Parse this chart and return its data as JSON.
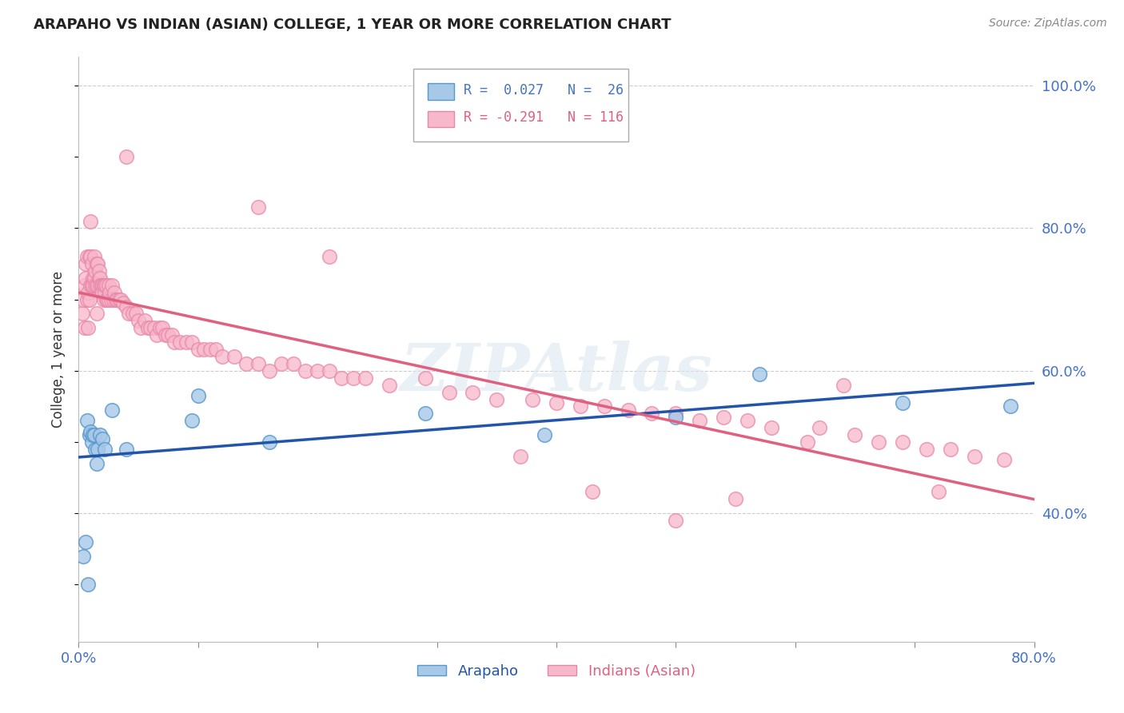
{
  "title": "ARAPAHO VS INDIAN (ASIAN) COLLEGE, 1 YEAR OR MORE CORRELATION CHART",
  "source": "Source: ZipAtlas.com",
  "ylabel": "College, 1 year or more",
  "xlim": [
    0.0,
    0.8
  ],
  "ylim": [
    0.22,
    1.04
  ],
  "xticks": [
    0.0,
    0.1,
    0.2,
    0.3,
    0.4,
    0.5,
    0.6,
    0.7,
    0.8
  ],
  "xticklabels": [
    "0.0%",
    "",
    "",
    "",
    "",
    "",
    "",
    "",
    "80.0%"
  ],
  "yticks_right": [
    0.4,
    0.6,
    0.8,
    1.0
  ],
  "ytick_labels_right": [
    "40.0%",
    "60.0%",
    "80.0%",
    "100.0%"
  ],
  "arapaho_color": "#a8c8e8",
  "arapaho_edge_color": "#5598cc",
  "arapaho_line_color": "#2255aa",
  "indian_color": "#f8b8cc",
  "indian_edge_color": "#e888a8",
  "indian_line_color": "#e06080",
  "watermark": "ZIPAtlas",
  "arapaho_x": [
    0.004,
    0.006,
    0.007,
    0.008,
    0.009,
    0.01,
    0.011,
    0.012,
    0.013,
    0.014,
    0.015,
    0.016,
    0.018,
    0.02,
    0.022,
    0.028,
    0.04,
    0.095,
    0.1,
    0.16,
    0.29,
    0.39,
    0.5,
    0.57,
    0.69,
    0.78
  ],
  "arapaho_y": [
    0.34,
    0.36,
    0.53,
    0.3,
    0.51,
    0.515,
    0.5,
    0.51,
    0.51,
    0.49,
    0.47,
    0.49,
    0.51,
    0.505,
    0.49,
    0.545,
    0.49,
    0.53,
    0.565,
    0.5,
    0.54,
    0.51,
    0.535,
    0.595,
    0.555,
    0.55
  ],
  "indian_x": [
    0.003,
    0.004,
    0.005,
    0.005,
    0.006,
    0.006,
    0.007,
    0.007,
    0.008,
    0.008,
    0.009,
    0.009,
    0.01,
    0.01,
    0.01,
    0.011,
    0.011,
    0.012,
    0.012,
    0.013,
    0.013,
    0.014,
    0.014,
    0.015,
    0.015,
    0.015,
    0.016,
    0.016,
    0.017,
    0.017,
    0.018,
    0.018,
    0.019,
    0.019,
    0.02,
    0.02,
    0.021,
    0.021,
    0.022,
    0.022,
    0.023,
    0.023,
    0.024,
    0.025,
    0.025,
    0.026,
    0.027,
    0.028,
    0.029,
    0.03,
    0.031,
    0.032,
    0.034,
    0.035,
    0.037,
    0.04,
    0.042,
    0.045,
    0.048,
    0.05,
    0.052,
    0.055,
    0.058,
    0.06,
    0.063,
    0.065,
    0.068,
    0.07,
    0.073,
    0.075,
    0.078,
    0.08,
    0.085,
    0.09,
    0.095,
    0.1,
    0.105,
    0.11,
    0.115,
    0.12,
    0.13,
    0.14,
    0.15,
    0.16,
    0.17,
    0.18,
    0.19,
    0.2,
    0.21,
    0.22,
    0.23,
    0.24,
    0.26,
    0.29,
    0.31,
    0.33,
    0.35,
    0.38,
    0.4,
    0.42,
    0.44,
    0.46,
    0.48,
    0.5,
    0.52,
    0.54,
    0.56,
    0.58,
    0.62,
    0.65,
    0.67,
    0.69,
    0.71,
    0.73,
    0.75,
    0.775
  ],
  "indian_y": [
    0.68,
    0.7,
    0.72,
    0.66,
    0.73,
    0.75,
    0.7,
    0.76,
    0.71,
    0.66,
    0.76,
    0.7,
    0.72,
    0.76,
    0.81,
    0.75,
    0.72,
    0.73,
    0.72,
    0.73,
    0.76,
    0.72,
    0.74,
    0.68,
    0.72,
    0.75,
    0.72,
    0.75,
    0.73,
    0.74,
    0.73,
    0.72,
    0.71,
    0.72,
    0.72,
    0.71,
    0.72,
    0.7,
    0.71,
    0.72,
    0.7,
    0.72,
    0.7,
    0.72,
    0.7,
    0.71,
    0.7,
    0.72,
    0.7,
    0.71,
    0.7,
    0.7,
    0.7,
    0.7,
    0.695,
    0.69,
    0.68,
    0.68,
    0.68,
    0.67,
    0.66,
    0.67,
    0.66,
    0.66,
    0.66,
    0.65,
    0.66,
    0.66,
    0.65,
    0.65,
    0.65,
    0.64,
    0.64,
    0.64,
    0.64,
    0.63,
    0.63,
    0.63,
    0.63,
    0.62,
    0.62,
    0.61,
    0.61,
    0.6,
    0.61,
    0.61,
    0.6,
    0.6,
    0.6,
    0.59,
    0.59,
    0.59,
    0.58,
    0.59,
    0.57,
    0.57,
    0.56,
    0.56,
    0.555,
    0.55,
    0.55,
    0.545,
    0.54,
    0.54,
    0.53,
    0.535,
    0.53,
    0.52,
    0.52,
    0.51,
    0.5,
    0.5,
    0.49,
    0.49,
    0.48,
    0.475
  ],
  "indian_extra_x": [
    0.04,
    0.15,
    0.21,
    0.37,
    0.43,
    0.5,
    0.55,
    0.61,
    0.64,
    0.72
  ],
  "indian_extra_y": [
    0.9,
    0.83,
    0.76,
    0.48,
    0.43,
    0.39,
    0.42,
    0.5,
    0.58,
    0.43
  ]
}
